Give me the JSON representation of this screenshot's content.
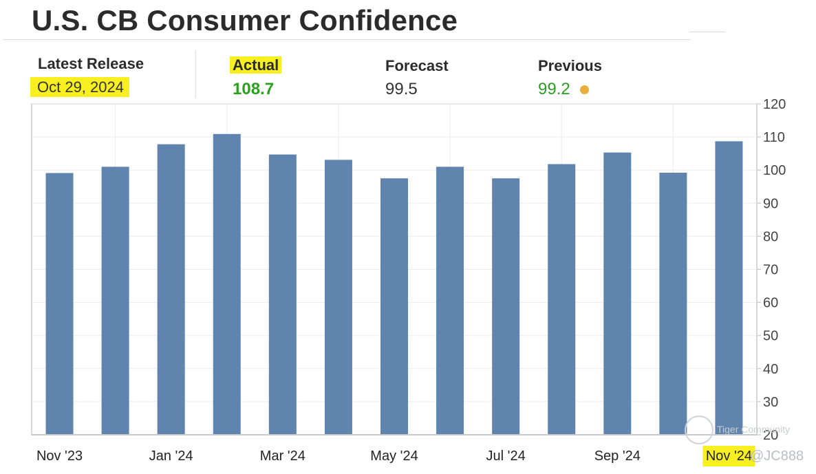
{
  "header": {
    "title": "U.S. CB Consumer Confidence"
  },
  "stats": {
    "latest_release_label": "Latest Release",
    "latest_release_value": "Oct 29, 2024",
    "actual_label": "Actual",
    "actual_value": "108.7",
    "forecast_label": "Forecast",
    "forecast_value": "99.5",
    "previous_label": "Previous",
    "previous_value": "99.2"
  },
  "colors": {
    "bar": "#5f84ae",
    "highlight": "#f7ef1f",
    "positive": "#2aa01e",
    "dot": "#e8ad3b"
  },
  "watermark": {
    "brand": "Tiger Community",
    "handle": "@JC888"
  },
  "chart_data": {
    "type": "bar",
    "title": "U.S. CB Consumer Confidence",
    "categories": [
      "Nov '23",
      "Dec '23",
      "Jan '24",
      "Feb '24",
      "Mar '24",
      "Apr '24",
      "May '24",
      "Jun '24",
      "Jul '24",
      "Aug '24",
      "Sep '24",
      "Oct '24",
      "Nov '24"
    ],
    "x_tick_labels": [
      "Nov '23",
      "Jan '24",
      "Mar '24",
      "May '24",
      "Jul '24",
      "Sep '24",
      "Nov '24"
    ],
    "values": [
      99.1,
      101.0,
      107.8,
      110.9,
      104.7,
      103.1,
      97.5,
      101.0,
      97.5,
      101.8,
      105.3,
      99.2,
      108.7
    ],
    "ylim": [
      20,
      120
    ],
    "y_ticks": [
      20,
      30,
      40,
      50,
      60,
      70,
      80,
      90,
      100,
      110,
      120
    ],
    "grid": true,
    "y_axis_side": "right"
  }
}
